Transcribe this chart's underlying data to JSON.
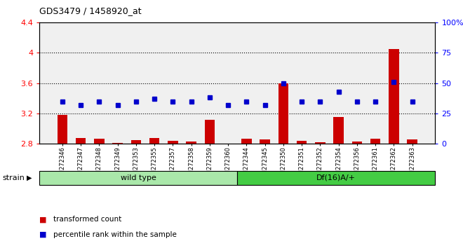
{
  "title": "GDS3479 / 1458920_at",
  "samples": [
    "GSM272346",
    "GSM272347",
    "GSM272348",
    "GSM272349",
    "GSM272353",
    "GSM272355",
    "GSM272357",
    "GSM272358",
    "GSM272359",
    "GSM272360",
    "GSM272344",
    "GSM272345",
    "GSM272350",
    "GSM272351",
    "GSM272352",
    "GSM272354",
    "GSM272356",
    "GSM272361",
    "GSM272362",
    "GSM272363"
  ],
  "red_values": [
    3.18,
    2.88,
    2.87,
    2.81,
    2.85,
    2.88,
    2.84,
    2.83,
    3.12,
    2.8,
    2.87,
    2.86,
    3.6,
    2.84,
    2.82,
    3.15,
    2.83,
    2.87,
    4.05,
    2.86
  ],
  "blue_values": [
    35,
    32,
    35,
    32,
    35,
    37,
    35,
    35,
    38,
    32,
    35,
    32,
    50,
    35,
    35,
    43,
    35,
    35,
    51,
    35
  ],
  "ylim_left": [
    2.8,
    4.4
  ],
  "ylim_right": [
    0,
    100
  ],
  "yticks_left": [
    2.8,
    3.2,
    3.6,
    4.0,
    4.4
  ],
  "yticks_right": [
    0,
    25,
    50,
    75,
    100
  ],
  "ytick_labels_left": [
    "2.8",
    "3.2",
    "3.6",
    "4",
    "4.4"
  ],
  "ytick_labels_right": [
    "0",
    "25",
    "50",
    "75",
    "100%"
  ],
  "hlines": [
    3.2,
    3.6,
    4.0
  ],
  "group1_label": "wild type",
  "group1_count": 10,
  "group2_label": "Df(16)A/+",
  "group2_count": 10,
  "group1_color": "#aae8aa",
  "group2_color": "#44cc44",
  "bar_color": "#cc0000",
  "dot_color": "#0000cc",
  "plot_bg": "#f0f0f0",
  "strain_label": "strain",
  "legend_red": "transformed count",
  "legend_blue": "percentile rank within the sample",
  "bar_bottom": 2.8,
  "bar_width": 0.55
}
